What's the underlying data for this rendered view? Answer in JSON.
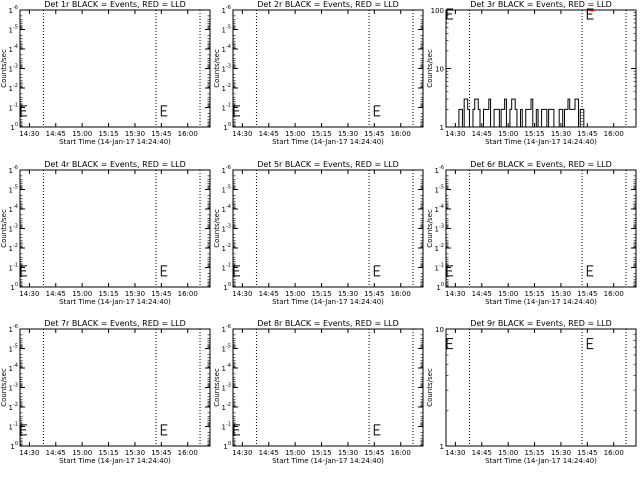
{
  "chart_data": [
    {
      "type": "line",
      "id": "det1",
      "title": "Det 1r BLACK = Events, RED = LLD",
      "xlabel": "Start Time (14-Jan-17 14:24:40)",
      "ylabel": "Counts/sec",
      "x_ticks": [
        "14:30",
        "14:45",
        "15:00",
        "15:15",
        "15:30",
        "15:45",
        "16:00"
      ],
      "y_scale": "log",
      "ylim": [
        1,
        1e-06
      ],
      "y_ticks": [
        {
          "v": "1",
          "e": "0"
        },
        {
          "v": "1",
          "e": "-1"
        },
        {
          "v": "1",
          "e": "-2"
        },
        {
          "v": "1",
          "e": "-3"
        },
        {
          "v": "1",
          "e": "-4"
        },
        {
          "v": "1",
          "e": "-5"
        },
        {
          "v": "1",
          "e": "-6"
        }
      ],
      "dotted_lines": [
        "14:38",
        "15:42",
        "16:07"
      ],
      "markers": [
        {
          "x": "14:25",
          "y": 0.15
        },
        {
          "x": "15:45",
          "y": 0.15
        }
      ],
      "series": []
    },
    {
      "type": "line",
      "id": "det2",
      "title": "Det 2r BLACK = Events, RED = LLD",
      "xlabel": "Start Time (14-Jan-17 14:24:40)",
      "ylabel": "Counts/sec",
      "x_ticks": [
        "14:30",
        "14:45",
        "15:00",
        "15:15",
        "15:30",
        "15:45",
        "16:00"
      ],
      "y_scale": "log",
      "ylim": [
        1,
        1e-06
      ],
      "y_ticks": [
        {
          "v": "1",
          "e": "0"
        },
        {
          "v": "1",
          "e": "-1"
        },
        {
          "v": "1",
          "e": "-2"
        },
        {
          "v": "1",
          "e": "-3"
        },
        {
          "v": "1",
          "e": "-4"
        },
        {
          "v": "1",
          "e": "-5"
        },
        {
          "v": "1",
          "e": "-6"
        }
      ],
      "dotted_lines": [
        "14:38",
        "15:42",
        "16:07"
      ],
      "markers": [
        {
          "x": "14:25",
          "y": 0.15
        },
        {
          "x": "15:45",
          "y": 0.15
        }
      ],
      "series": []
    },
    {
      "type": "line",
      "id": "det3",
      "title": "Det 3r BLACK = Events, RED = LLD",
      "xlabel": "Start Time (14-Jan-17 14:24:40)",
      "ylabel": "Counts/sec",
      "x_ticks": [
        "14:30",
        "14:45",
        "15:00",
        "15:15",
        "15:30",
        "15:45",
        "16:00"
      ],
      "y_scale": "log",
      "ylim": [
        1,
        100
      ],
      "y_ticks": [
        {
          "v": "1",
          "e": ""
        },
        {
          "v": "10",
          "e": ""
        },
        {
          "v": "100",
          "e": ""
        }
      ],
      "dotted_lines": [
        "14:38",
        "15:42",
        "16:07"
      ],
      "markers": [
        {
          "x": "14:25",
          "y": 100
        },
        {
          "x": "15:45",
          "y": 100
        }
      ],
      "red_segments": [
        {
          "x0": "15:46",
          "x1": "15:49",
          "y": 100
        }
      ],
      "series": [
        {
          "color": "#000000",
          "x": [
            "14:25",
            "14:31",
            "14:32",
            "14:34",
            "14:35",
            "14:37",
            "14:38",
            "14:40",
            "14:41",
            "14:43",
            "14:44",
            "14:46",
            "14:47",
            "14:49",
            "14:50",
            "14:52",
            "14:53",
            "14:55",
            "14:56",
            "14:58",
            "14:59",
            "15:01",
            "15:02",
            "15:04",
            "15:05",
            "15:07",
            "15:08",
            "15:10",
            "15:11",
            "15:13",
            "15:14",
            "15:16",
            "15:17",
            "15:19",
            "15:20",
            "15:22",
            "15:23",
            "15:25",
            "15:26",
            "15:28",
            "15:29",
            "15:31",
            "15:32",
            "15:34",
            "15:35",
            "15:37",
            "15:38",
            "15:40",
            "15:41",
            "15:43",
            "15:44"
          ],
          "y": [
            1,
            1,
            2,
            1,
            3,
            2,
            1,
            2,
            3,
            2,
            1,
            2,
            2,
            3,
            1,
            2,
            2,
            1,
            2,
            3,
            1,
            2,
            3,
            2,
            1,
            2,
            1,
            2,
            2,
            3,
            1,
            2,
            1,
            2,
            2,
            1,
            2,
            2,
            1,
            1,
            2,
            1,
            2,
            3,
            2,
            2,
            3,
            1,
            2,
            1,
            1
          ]
        }
      ]
    },
    {
      "type": "line",
      "id": "det4",
      "title": "Det 4r BLACK = Events, RED = LLD",
      "xlabel": "Start Time (14-Jan-17 14:24:40)",
      "ylabel": "Counts/sec",
      "x_ticks": [
        "14:30",
        "14:45",
        "15:00",
        "15:15",
        "15:30",
        "15:45",
        "16:00"
      ],
      "y_scale": "log",
      "ylim": [
        1,
        1e-06
      ],
      "y_ticks": [
        {
          "v": "1",
          "e": "0"
        },
        {
          "v": "1",
          "e": "-1"
        },
        {
          "v": "1",
          "e": "-2"
        },
        {
          "v": "1",
          "e": "-3"
        },
        {
          "v": "1",
          "e": "-4"
        },
        {
          "v": "1",
          "e": "-5"
        },
        {
          "v": "1",
          "e": "-6"
        }
      ],
      "dotted_lines": [
        "14:38",
        "15:42",
        "16:07"
      ],
      "markers": [
        {
          "x": "14:25",
          "y": 0.15
        },
        {
          "x": "15:45",
          "y": 0.15
        }
      ],
      "series": []
    },
    {
      "type": "line",
      "id": "det5",
      "title": "Det 5r BLACK = Events, RED = LLD",
      "xlabel": "Start Time (14-Jan-17 14:24:40)",
      "ylabel": "Counts/sec",
      "x_ticks": [
        "14:30",
        "14:45",
        "15:00",
        "15:15",
        "15:30",
        "15:45",
        "16:00"
      ],
      "y_scale": "log",
      "ylim": [
        1,
        1e-06
      ],
      "y_ticks": [
        {
          "v": "1",
          "e": "0"
        },
        {
          "v": "1",
          "e": "-1"
        },
        {
          "v": "1",
          "e": "-2"
        },
        {
          "v": "1",
          "e": "-3"
        },
        {
          "v": "1",
          "e": "-4"
        },
        {
          "v": "1",
          "e": "-5"
        },
        {
          "v": "1",
          "e": "-6"
        }
      ],
      "dotted_lines": [
        "14:38",
        "15:42",
        "16:07"
      ],
      "markers": [
        {
          "x": "14:25",
          "y": 0.15
        },
        {
          "x": "15:45",
          "y": 0.15
        }
      ],
      "series": []
    },
    {
      "type": "line",
      "id": "det6",
      "title": "Det 6r BLACK = Events, RED = LLD",
      "xlabel": "Start Time (14-Jan-17 14:24:40)",
      "ylabel": "Counts/sec",
      "x_ticks": [
        "14:30",
        "14:45",
        "15:00",
        "15:15",
        "15:30",
        "15:45",
        "16:00"
      ],
      "y_scale": "log",
      "ylim": [
        1,
        1e-06
      ],
      "y_ticks": [
        {
          "v": "1",
          "e": "0"
        },
        {
          "v": "1",
          "e": "-1"
        },
        {
          "v": "1",
          "e": "-2"
        },
        {
          "v": "1",
          "e": "-3"
        },
        {
          "v": "1",
          "e": "-4"
        },
        {
          "v": "1",
          "e": "-5"
        },
        {
          "v": "1",
          "e": "-6"
        }
      ],
      "dotted_lines": [
        "14:38",
        "15:42",
        "16:07"
      ],
      "markers": [
        {
          "x": "14:25",
          "y": 0.15
        },
        {
          "x": "15:45",
          "y": 0.15
        }
      ],
      "series": []
    },
    {
      "type": "line",
      "id": "det7",
      "title": "Det 7r BLACK = Events, RED = LLD",
      "xlabel": "Start Time (14-Jan-17 14:24:40)",
      "ylabel": "Counts/sec",
      "x_ticks": [
        "14:30",
        "14:45",
        "15:00",
        "15:15",
        "15:30",
        "15:45",
        "16:00"
      ],
      "y_scale": "log",
      "ylim": [
        1,
        1e-06
      ],
      "y_ticks": [
        {
          "v": "1",
          "e": "0"
        },
        {
          "v": "1",
          "e": "-1"
        },
        {
          "v": "1",
          "e": "-2"
        },
        {
          "v": "1",
          "e": "-3"
        },
        {
          "v": "1",
          "e": "-4"
        },
        {
          "v": "1",
          "e": "-5"
        },
        {
          "v": "1",
          "e": "-6"
        }
      ],
      "dotted_lines": [
        "14:38",
        "15:42",
        "16:07"
      ],
      "markers": [
        {
          "x": "14:25",
          "y": 0.15
        },
        {
          "x": "15:45",
          "y": 0.15
        }
      ],
      "series": []
    },
    {
      "type": "line",
      "id": "det8",
      "title": "Det 8r BLACK = Events, RED = LLD",
      "xlabel": "Start Time (14-Jan-17 14:24:40)",
      "ylabel": "Counts/sec",
      "x_ticks": [
        "14:30",
        "14:45",
        "15:00",
        "15:15",
        "15:30",
        "15:45",
        "16:00"
      ],
      "y_scale": "log",
      "ylim": [
        1,
        1e-06
      ],
      "y_ticks": [
        {
          "v": "1",
          "e": "0"
        },
        {
          "v": "1",
          "e": "-1"
        },
        {
          "v": "1",
          "e": "-2"
        },
        {
          "v": "1",
          "e": "-3"
        },
        {
          "v": "1",
          "e": "-4"
        },
        {
          "v": "1",
          "e": "-5"
        },
        {
          "v": "1",
          "e": "-6"
        }
      ],
      "dotted_lines": [
        "14:38",
        "15:42",
        "16:07"
      ],
      "markers": [
        {
          "x": "14:25",
          "y": 0.15
        },
        {
          "x": "15:45",
          "y": 0.15
        }
      ],
      "series": []
    },
    {
      "type": "line",
      "id": "det9",
      "title": "Det 9r BLACK = Events, RED = LLD",
      "xlabel": "Start Time (14-Jan-17 14:24:40)",
      "ylabel": "Counts/sec",
      "x_ticks": [
        "14:30",
        "14:45",
        "15:00",
        "15:15",
        "15:30",
        "15:45",
        "16:00"
      ],
      "y_scale": "log",
      "ylim": [
        1,
        10
      ],
      "y_ticks": [
        {
          "v": "1",
          "e": ""
        },
        {
          "v": "10",
          "e": ""
        }
      ],
      "dotted_lines": [
        "14:38",
        "15:42",
        "16:07"
      ],
      "markers": [
        {
          "x": "14:25",
          "y": 7.5
        },
        {
          "x": "15:45",
          "y": 7.5
        }
      ],
      "series": []
    }
  ]
}
